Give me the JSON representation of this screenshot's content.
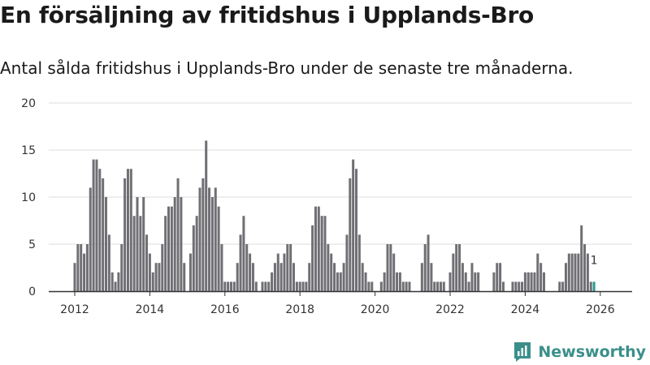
{
  "title": "En försäljning av fritidshus i Upplands-Bro",
  "subtitle": "Antal sålda fritidshus i Upplands-Bro under de senaste tre månaderna.",
  "brand": "Newsworthy",
  "colors": {
    "bar": "#6f6f74",
    "highlight": "#2a9d8f",
    "grid": "#dddddd",
    "axis": "#333333"
  },
  "chart_data": {
    "type": "bar",
    "start": "2012-01",
    "interval": "month",
    "values": [
      3,
      5,
      5,
      4,
      5,
      11,
      14,
      14,
      13,
      12,
      10,
      6,
      2,
      1,
      2,
      5,
      12,
      13,
      13,
      8,
      10,
      8,
      10,
      6,
      4,
      2,
      3,
      3,
      5,
      8,
      9,
      9,
      10,
      12,
      10,
      3,
      0,
      4,
      7,
      8,
      11,
      12,
      16,
      11,
      10,
      11,
      9,
      5,
      1,
      1,
      1,
      1,
      3,
      6,
      8,
      5,
      4,
      3,
      1,
      0,
      1,
      1,
      1,
      2,
      3,
      4,
      3,
      4,
      5,
      5,
      3,
      1,
      1,
      1,
      1,
      3,
      7,
      9,
      9,
      8,
      8,
      5,
      4,
      3,
      2,
      2,
      3,
      6,
      12,
      14,
      13,
      6,
      3,
      2,
      1,
      1,
      0,
      0,
      1,
      2,
      5,
      5,
      4,
      2,
      2,
      1,
      1,
      1,
      0,
      0,
      0,
      3,
      5,
      6,
      3,
      1,
      1,
      1,
      1,
      0,
      2,
      4,
      5,
      5,
      3,
      2,
      1,
      3,
      2,
      2,
      0,
      0,
      0,
      0,
      2,
      3,
      3,
      1,
      0,
      0,
      1,
      1,
      1,
      1,
      2,
      2,
      2,
      2,
      4,
      3,
      2,
      0,
      0,
      0,
      0,
      1,
      1,
      3,
      4,
      4,
      4,
      4,
      7,
      5,
      4,
      1,
      1
    ],
    "highlight_label": "1",
    "x_ticks": [
      "2012",
      "2014",
      "2016",
      "2018",
      "2020",
      "2022",
      "2024",
      "2026"
    ],
    "y_ticks": [
      "0",
      "5",
      "10",
      "15",
      "20"
    ],
    "ylim": [
      0,
      20
    ]
  }
}
